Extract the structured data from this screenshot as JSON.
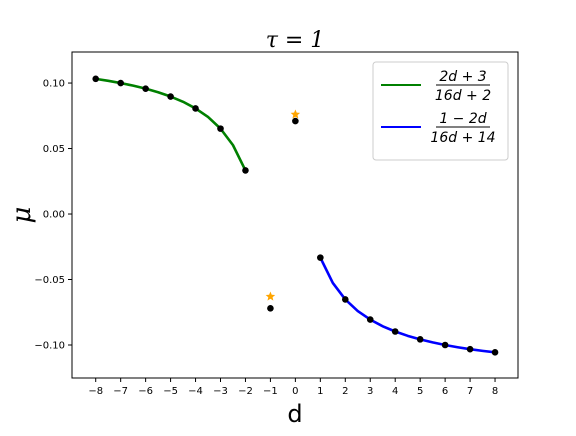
{
  "chart_data": {
    "type": "line",
    "title": "τ = 1",
    "x_label": "d",
    "y_label": "μ",
    "xlim": [
      -8.95,
      8.92
    ],
    "ylim": [
      -0.1252,
      0.1237
    ],
    "xticks": [
      {
        "value": -8,
        "label": "−8"
      },
      {
        "value": -7,
        "label": "−7"
      },
      {
        "value": -6,
        "label": "−6"
      },
      {
        "value": -5,
        "label": "−5"
      },
      {
        "value": -4,
        "label": "−4"
      },
      {
        "value": -3,
        "label": "−3"
      },
      {
        "value": -2,
        "label": "−2"
      },
      {
        "value": -1,
        "label": "−1"
      },
      0,
      1,
      2,
      3,
      4,
      5,
      6,
      7,
      8
    ],
    "yticks": [
      {
        "value": 0.1,
        "label": "0.10"
      },
      {
        "value": 0.05,
        "label": "0.05"
      },
      {
        "value": 0,
        "label": "0.00"
      },
      {
        "value": -0.05,
        "label": "−0.05"
      },
      {
        "value": -0.1,
        "label": "−0.10"
      }
    ],
    "legend_position": "upper right",
    "series": [
      {
        "legend_label": {
          "numerator": "2d + 3",
          "denominator": "16d + 2"
        },
        "color": "#008000",
        "marker": "none",
        "x": [
          -8,
          -7.5,
          -7,
          -6.5,
          -6,
          -5.5,
          -5,
          -4.5,
          -4,
          -3.5,
          -3,
          -2.5,
          -2
        ],
        "values": [
          0.1032,
          0.1017,
          0.1,
          0.098,
          0.0957,
          0.093,
          0.0897,
          0.0857,
          0.0806,
          0.0741,
          0.0652,
          0.0526,
          0.0333
        ]
      },
      {
        "legend_label": {
          "numerator": "1 − 2d",
          "denominator": "16d + 14"
        },
        "color": "#0000ff",
        "marker": "none",
        "x": [
          1,
          1.5,
          2,
          2.5,
          3,
          3.5,
          4,
          4.5,
          5,
          5.5,
          6,
          6.5,
          7,
          7.5,
          8
        ],
        "values": [
          -0.0333,
          -0.0526,
          -0.0652,
          -0.0741,
          -0.0806,
          -0.0857,
          -0.0897,
          -0.093,
          -0.0957,
          -0.098,
          -0.1,
          -0.1017,
          -0.1032,
          -0.1045,
          -0.1056
        ]
      },
      {
        "color": "#000000",
        "marker": "circle",
        "x": [
          -8,
          -7,
          -6,
          -5,
          -4,
          -3,
          -2,
          -1,
          0,
          1,
          2,
          3,
          4,
          5,
          6,
          7,
          8
        ],
        "values": [
          0.1032,
          0.1,
          0.0957,
          0.0897,
          0.0806,
          0.0652,
          0.0333,
          -0.072,
          0.071,
          -0.0333,
          -0.0652,
          -0.0806,
          -0.0897,
          -0.0957,
          -0.1,
          -0.1032,
          -0.1056
        ]
      },
      {
        "color": "#ffa500",
        "marker": "star",
        "x": [
          -1,
          0
        ],
        "values": [
          -0.063,
          0.076
        ]
      }
    ]
  }
}
